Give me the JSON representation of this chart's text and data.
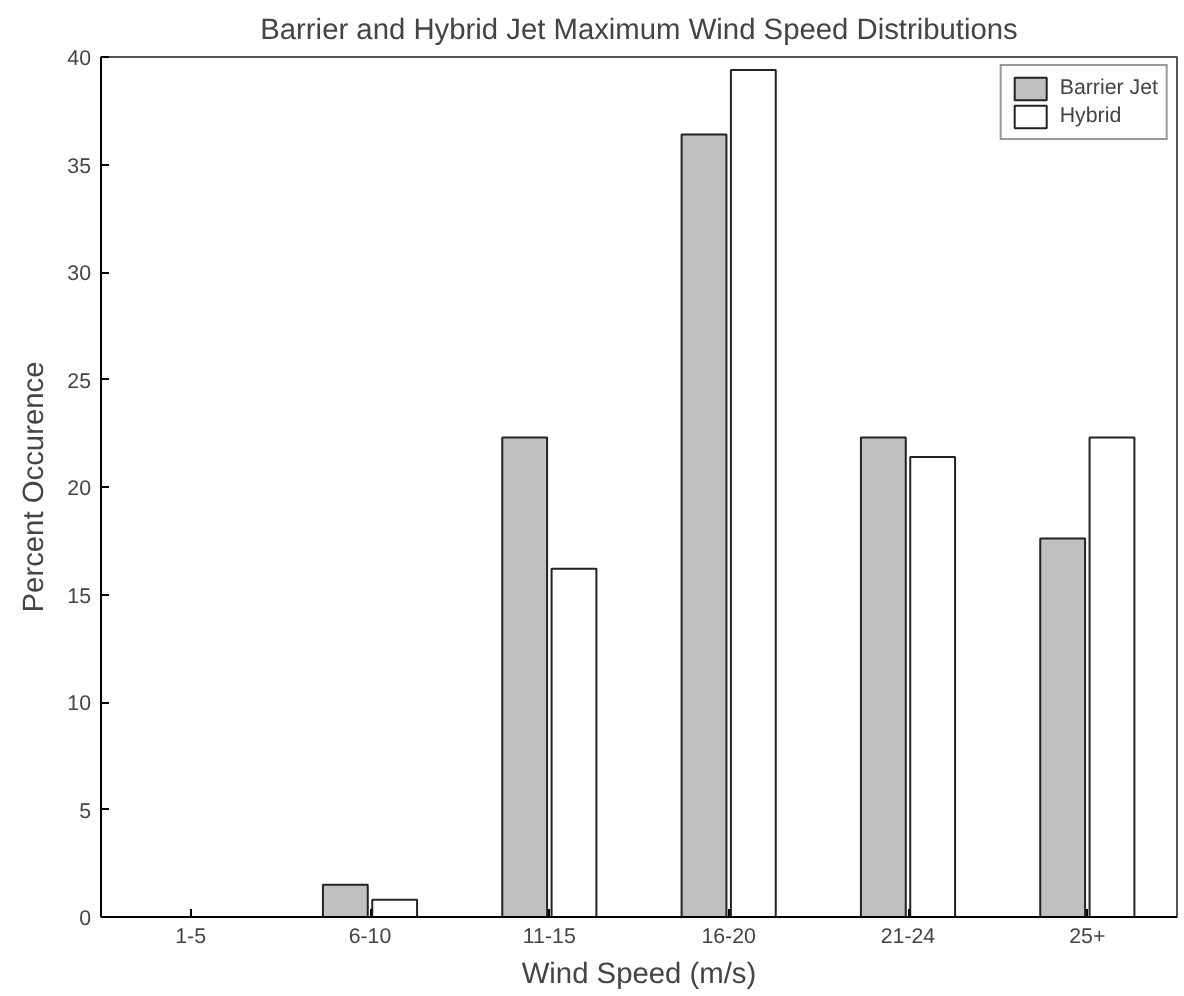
{
  "chart_data": {
    "type": "bar",
    "title": "Barrier and Hybrid Jet Maximum Wind Speed Distributions",
    "xlabel": "Wind Speed (m/s)",
    "ylabel": "Percent Occurence",
    "categories": [
      "1-5",
      "6-10",
      "11-15",
      "16-20",
      "21-24",
      "25+"
    ],
    "series": [
      {
        "name": "Barrier Jet",
        "color": "#c0c0c0",
        "values": [
          0,
          1.5,
          22.3,
          36.4,
          22.3,
          17.6
        ]
      },
      {
        "name": "Hybrid",
        "color": "#ffffff",
        "values": [
          0,
          0.8,
          16.2,
          39.4,
          21.4,
          22.3
        ]
      }
    ],
    "ylim": [
      0,
      40
    ],
    "yticks": [
      0,
      5,
      10,
      15,
      20,
      25,
      30,
      35,
      40
    ],
    "grid": false,
    "legend": "top right"
  }
}
